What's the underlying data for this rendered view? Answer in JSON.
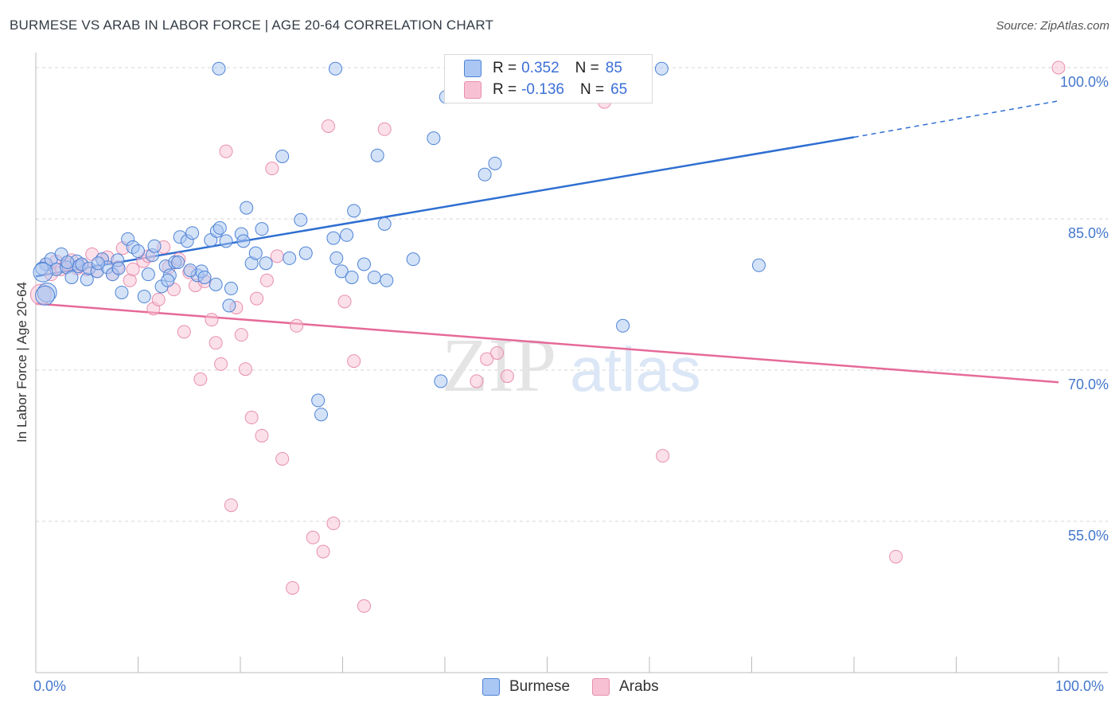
{
  "title": "BURMESE VS ARAB IN LABOR FORCE | AGE 20-64 CORRELATION CHART",
  "source": "Source: ZipAtlas.com",
  "watermark": {
    "zip": "ZIP",
    "atlas": "atlas"
  },
  "colors": {
    "burmese_fill": "#aac6f2",
    "burmese_stroke": "#4d83d6",
    "burmese_line": "#2f6fd1",
    "arab_fill": "#f7c1d3",
    "arab_stroke": "#e88fae",
    "arab_line": "#e66a98",
    "axis_label": "#4477cc",
    "grid": "#d6d6d6"
  },
  "legend": {
    "rows": [
      {
        "r_label": "R =",
        "r_value": "0.352",
        "n_label": "N =",
        "n_value": "85"
      },
      {
        "r_label": "R =",
        "r_value": "-0.136",
        "n_label": "N =",
        "n_value": "65"
      }
    ]
  },
  "bottom_legend": {
    "burmese": "Burmese",
    "arabs": "Arabs"
  },
  "chart_data": {
    "type": "scatter",
    "title": "BURMESE VS ARAB IN LABOR FORCE | AGE 20-64 CORRELATION CHART",
    "xlabel": "",
    "ylabel": "In Labor Force | Age 20-64",
    "xlim": [
      0,
      100
    ],
    "ylim": [
      40,
      101.5
    ],
    "x_tick_labels": [
      "0.0%",
      "100.0%"
    ],
    "y_ticks": [
      55,
      70,
      85,
      100
    ],
    "y_tick_labels": [
      "55.0%",
      "70.0%",
      "85.0%",
      "100.0%"
    ],
    "grid": true,
    "series": [
      {
        "name": "Burmese",
        "r": 0.352,
        "n": 85,
        "trend": {
          "x0": 0,
          "y0": 79.3,
          "x1": 80,
          "y1": 93.1,
          "dash_to_x": 100,
          "dash_to_y": 96.7
        },
        "points": [
          [
            1,
            80.5
          ],
          [
            1.5,
            81
          ],
          [
            2,
            80
          ],
          [
            2.5,
            81.5
          ],
          [
            3,
            80.2
          ],
          [
            3.5,
            79.2
          ],
          [
            4,
            80.8
          ],
          [
            4.2,
            80.3
          ],
          [
            4.5,
            80.5
          ],
          [
            5,
            79
          ],
          [
            5.2,
            80.1
          ],
          [
            6,
            79.8
          ],
          [
            6.5,
            81
          ],
          [
            7,
            80.2
          ],
          [
            7.5,
            79.5
          ],
          [
            8,
            80.9
          ],
          [
            8.4,
            77.7
          ],
          [
            9,
            83
          ],
          [
            9.5,
            82.2
          ],
          [
            10,
            81.8
          ],
          [
            10.6,
            77.3
          ],
          [
            11,
            79.5
          ],
          [
            11.4,
            81.4
          ],
          [
            11.6,
            82.3
          ],
          [
            12.3,
            78.3
          ],
          [
            12.7,
            80.3
          ],
          [
            13.1,
            79.4
          ],
          [
            13.6,
            80.7
          ],
          [
            14.1,
            83.2
          ],
          [
            14.8,
            82.8
          ],
          [
            15.3,
            83.6
          ],
          [
            15.8,
            79.4
          ],
          [
            16.2,
            79.8
          ],
          [
            16.5,
            79.2
          ],
          [
            17.1,
            82.9
          ],
          [
            17.7,
            83.8
          ],
          [
            18,
            84.1
          ],
          [
            18.6,
            82.8
          ],
          [
            18.9,
            76.4
          ],
          [
            19.1,
            78.1
          ],
          [
            20.1,
            83.5
          ],
          [
            20.3,
            82.8
          ],
          [
            20.6,
            86.1
          ],
          [
            21.1,
            80.6
          ],
          [
            21.5,
            81.6
          ],
          [
            22.1,
            84
          ],
          [
            22.5,
            80.6
          ],
          [
            24.1,
            91.2
          ],
          [
            24.8,
            81.1
          ],
          [
            25.9,
            84.9
          ],
          [
            26.4,
            81.6
          ],
          [
            27.6,
            67
          ],
          [
            27.9,
            65.6
          ],
          [
            29.1,
            83.1
          ],
          [
            29.4,
            81.1
          ],
          [
            29.9,
            79.8
          ],
          [
            30.4,
            83.4
          ],
          [
            30.9,
            79.2
          ],
          [
            31.1,
            85.8
          ],
          [
            32.1,
            80.5
          ],
          [
            33.1,
            79.2
          ],
          [
            33.4,
            91.3
          ],
          [
            34.1,
            84.5
          ],
          [
            34.3,
            78.9
          ],
          [
            36.9,
            81
          ],
          [
            38.9,
            93
          ],
          [
            39.6,
            68.9
          ],
          [
            40.1,
            97.1
          ],
          [
            43.9,
            89.4
          ],
          [
            44.9,
            90.5
          ],
          [
            57.4,
            74.4
          ],
          [
            70.7,
            80.4
          ],
          [
            17.6,
            78.5
          ],
          [
            15.1,
            79.9
          ],
          [
            13.9,
            80.7
          ],
          [
            12.9,
            78.9
          ],
          [
            8.1,
            80.1
          ],
          [
            6.1,
            80.6
          ],
          [
            3.1,
            80.7
          ],
          [
            1.1,
            77.7
          ],
          [
            0.6,
            80.1
          ],
          [
            0.7,
            79.7
          ],
          [
            0.9,
            77.4
          ],
          [
            61.2,
            99.9
          ],
          [
            17.9,
            99.9
          ],
          [
            29.3,
            99.9
          ]
        ]
      },
      {
        "name": "Arabs",
        "r": -0.136,
        "n": 65,
        "trend": {
          "x0": 0,
          "y0": 76.6,
          "x1": 100,
          "y1": 68.8
        },
        "points": [
          [
            0.5,
            77.5
          ],
          [
            1,
            80.5
          ],
          [
            1.5,
            79.5
          ],
          [
            2,
            80.8
          ],
          [
            2.5,
            80
          ],
          [
            3,
            80.5
          ],
          [
            3.5,
            80.9
          ],
          [
            4,
            80.1
          ],
          [
            4.5,
            80.4
          ],
          [
            5,
            80
          ],
          [
            5.5,
            81.5
          ],
          [
            6,
            79.8
          ],
          [
            6.5,
            81
          ],
          [
            7,
            81.2
          ],
          [
            7.5,
            79.5
          ],
          [
            8,
            80.2
          ],
          [
            8.5,
            82.1
          ],
          [
            9.2,
            78.9
          ],
          [
            9.5,
            80
          ],
          [
            10.5,
            80.8
          ],
          [
            11,
            81.3
          ],
          [
            11.5,
            76.1
          ],
          [
            12,
            77
          ],
          [
            12.5,
            82.2
          ],
          [
            13,
            80.2
          ],
          [
            13.5,
            78
          ],
          [
            14,
            81
          ],
          [
            14.5,
            73.8
          ],
          [
            15,
            79.7
          ],
          [
            15.6,
            78.4
          ],
          [
            16.1,
            69.1
          ],
          [
            16.5,
            78.8
          ],
          [
            17.2,
            75
          ],
          [
            17.6,
            72.7
          ],
          [
            18.1,
            70.6
          ],
          [
            18.6,
            91.7
          ],
          [
            19.1,
            56.6
          ],
          [
            19.6,
            76.2
          ],
          [
            20.1,
            73.5
          ],
          [
            20.5,
            70.1
          ],
          [
            21.1,
            65.3
          ],
          [
            21.6,
            77.1
          ],
          [
            22.1,
            63.5
          ],
          [
            22.6,
            78.9
          ],
          [
            23.1,
            90
          ],
          [
            23.6,
            81.3
          ],
          [
            24.1,
            61.2
          ],
          [
            25.1,
            48.4
          ],
          [
            25.5,
            74.4
          ],
          [
            27.1,
            53.4
          ],
          [
            28.1,
            52
          ],
          [
            28.6,
            94.2
          ],
          [
            29.1,
            54.8
          ],
          [
            30.2,
            76.8
          ],
          [
            31.1,
            70.9
          ],
          [
            32.1,
            46.6
          ],
          [
            34.1,
            93.9
          ],
          [
            43.1,
            68.9
          ],
          [
            44.1,
            71.1
          ],
          [
            45.1,
            71.7
          ],
          [
            46.1,
            69.4
          ],
          [
            55.6,
            96.6
          ],
          [
            61.3,
            61.5
          ],
          [
            84.1,
            51.5
          ],
          [
            100,
            100
          ]
        ]
      }
    ]
  }
}
